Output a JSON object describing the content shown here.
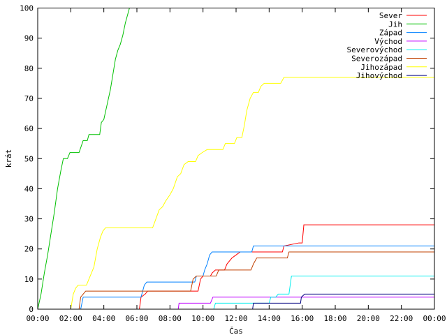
{
  "chart_data": {
    "type": "line",
    "title": "",
    "xlabel": "Čas",
    "ylabel": "krát",
    "xlim": [
      0,
      24
    ],
    "ylim": [
      0,
      100
    ],
    "x_ticks": [
      {
        "v": 0,
        "label": "00:00"
      },
      {
        "v": 2,
        "label": "02:00"
      },
      {
        "v": 4,
        "label": "04:00"
      },
      {
        "v": 6,
        "label": "06:00"
      },
      {
        "v": 8,
        "label": "08:00"
      },
      {
        "v": 10,
        "label": "10:00"
      },
      {
        "v": 12,
        "label": "12:00"
      },
      {
        "v": 14,
        "label": "14:00"
      },
      {
        "v": 16,
        "label": "16:00"
      },
      {
        "v": 18,
        "label": "18:00"
      },
      {
        "v": 20,
        "label": "20:00"
      },
      {
        "v": 22,
        "label": "22:00"
      },
      {
        "v": 24,
        "label": "00:00"
      }
    ],
    "y_ticks": [
      {
        "v": 0,
        "label": "0"
      },
      {
        "v": 10,
        "label": "10"
      },
      {
        "v": 20,
        "label": "20"
      },
      {
        "v": 30,
        "label": "30"
      },
      {
        "v": 40,
        "label": "40"
      },
      {
        "v": 50,
        "label": "50"
      },
      {
        "v": 60,
        "label": "60"
      },
      {
        "v": 70,
        "label": "70"
      },
      {
        "v": 80,
        "label": "80"
      },
      {
        "v": 90,
        "label": "90"
      },
      {
        "v": 100,
        "label": "100"
      }
    ],
    "legend_position": "top-right",
    "grid": false,
    "series": [
      {
        "name": "Sever",
        "color": "#ff0000",
        "points": [
          [
            6.15,
            0
          ],
          [
            6.25,
            4
          ],
          [
            6.5,
            5
          ],
          [
            6.65,
            6
          ],
          [
            9.7,
            6
          ],
          [
            9.85,
            10
          ],
          [
            10.0,
            11
          ],
          [
            10.45,
            11
          ],
          [
            10.55,
            12
          ],
          [
            10.75,
            13
          ],
          [
            11.3,
            13
          ],
          [
            11.45,
            15
          ],
          [
            11.75,
            17
          ],
          [
            12.0,
            18
          ],
          [
            12.25,
            19
          ],
          [
            14.8,
            19
          ],
          [
            14.9,
            21
          ],
          [
            15.8,
            22
          ],
          [
            16.0,
            22
          ],
          [
            16.1,
            28
          ],
          [
            24,
            28
          ]
        ]
      },
      {
        "name": "Jih",
        "color": "#00c000",
        "points": [
          [
            0,
            0
          ],
          [
            0.2,
            5
          ],
          [
            0.4,
            12
          ],
          [
            0.6,
            18
          ],
          [
            0.8,
            25
          ],
          [
            1.0,
            32
          ],
          [
            1.2,
            40
          ],
          [
            1.4,
            46
          ],
          [
            1.55,
            50
          ],
          [
            1.8,
            50
          ],
          [
            1.95,
            52
          ],
          [
            2.5,
            52
          ],
          [
            2.75,
            56
          ],
          [
            3.0,
            56
          ],
          [
            3.1,
            58
          ],
          [
            3.75,
            58
          ],
          [
            3.85,
            62
          ],
          [
            4.0,
            63
          ],
          [
            4.2,
            68
          ],
          [
            4.4,
            73
          ],
          [
            4.55,
            78
          ],
          [
            4.7,
            83
          ],
          [
            4.85,
            86
          ],
          [
            5.0,
            88
          ],
          [
            5.15,
            91
          ],
          [
            5.3,
            95
          ],
          [
            5.45,
            98
          ],
          [
            5.55,
            100
          ]
        ]
      },
      {
        "name": "Západ",
        "color": "#0080ff",
        "points": [
          [
            2.6,
            0
          ],
          [
            2.75,
            4
          ],
          [
            6.25,
            4
          ],
          [
            6.45,
            8
          ],
          [
            6.6,
            9
          ],
          [
            9.5,
            9
          ],
          [
            9.6,
            11
          ],
          [
            10.0,
            11
          ],
          [
            10.1,
            13
          ],
          [
            10.25,
            15
          ],
          [
            10.4,
            18
          ],
          [
            10.55,
            19
          ],
          [
            12.95,
            19
          ],
          [
            13.05,
            21
          ],
          [
            24,
            21
          ]
        ]
      },
      {
        "name": "Východ",
        "color": "#c000ff",
        "points": [
          [
            8.5,
            0
          ],
          [
            8.55,
            2
          ],
          [
            10.45,
            2
          ],
          [
            10.6,
            4
          ],
          [
            24,
            4
          ]
        ]
      },
      {
        "name": "Severovýchod",
        "color": "#00eeee",
        "points": [
          [
            10.65,
            0
          ],
          [
            10.75,
            2
          ],
          [
            14.0,
            2
          ],
          [
            14.1,
            4
          ],
          [
            14.4,
            4
          ],
          [
            14.55,
            5
          ],
          [
            15.2,
            5
          ],
          [
            15.35,
            11
          ],
          [
            24,
            11
          ]
        ]
      },
      {
        "name": "Severozápad",
        "color": "#c04000",
        "points": [
          [
            2.5,
            0
          ],
          [
            2.6,
            4
          ],
          [
            2.75,
            5
          ],
          [
            2.9,
            6
          ],
          [
            9.25,
            6
          ],
          [
            9.4,
            10
          ],
          [
            9.6,
            11
          ],
          [
            10.8,
            11
          ],
          [
            10.95,
            13
          ],
          [
            12.9,
            13
          ],
          [
            13.05,
            15
          ],
          [
            13.25,
            17
          ],
          [
            15.1,
            17
          ],
          [
            15.2,
            19
          ],
          [
            24,
            19
          ]
        ]
      },
      {
        "name": "Jihozápad",
        "color": "#ffff00",
        "points": [
          [
            2.0,
            0
          ],
          [
            2.15,
            5
          ],
          [
            2.3,
            7
          ],
          [
            2.45,
            8
          ],
          [
            2.95,
            8
          ],
          [
            3.1,
            10
          ],
          [
            3.25,
            12
          ],
          [
            3.4,
            14
          ],
          [
            3.6,
            20
          ],
          [
            3.8,
            24
          ],
          [
            3.95,
            26
          ],
          [
            4.1,
            27
          ],
          [
            6.95,
            27
          ],
          [
            7.15,
            30
          ],
          [
            7.35,
            33
          ],
          [
            7.55,
            34
          ],
          [
            7.75,
            36
          ],
          [
            8.0,
            38
          ],
          [
            8.2,
            40
          ],
          [
            8.45,
            44
          ],
          [
            8.65,
            45
          ],
          [
            8.85,
            48
          ],
          [
            9.1,
            49
          ],
          [
            9.55,
            49
          ],
          [
            9.7,
            51
          ],
          [
            9.95,
            52
          ],
          [
            10.25,
            53
          ],
          [
            11.2,
            53
          ],
          [
            11.35,
            55
          ],
          [
            11.9,
            55
          ],
          [
            12.05,
            57
          ],
          [
            12.35,
            57
          ],
          [
            12.5,
            61
          ],
          [
            12.65,
            66
          ],
          [
            12.85,
            70
          ],
          [
            13.05,
            72
          ],
          [
            13.35,
            72
          ],
          [
            13.5,
            74
          ],
          [
            13.7,
            75
          ],
          [
            14.7,
            75
          ],
          [
            14.9,
            77
          ],
          [
            24,
            77
          ]
        ]
      },
      {
        "name": "Jihovýchod",
        "color": "#000080",
        "points": [
          [
            13.0,
            0
          ],
          [
            13.05,
            2
          ],
          [
            15.9,
            2
          ],
          [
            15.95,
            4
          ],
          [
            16.15,
            5
          ],
          [
            24,
            5
          ]
        ]
      }
    ]
  }
}
